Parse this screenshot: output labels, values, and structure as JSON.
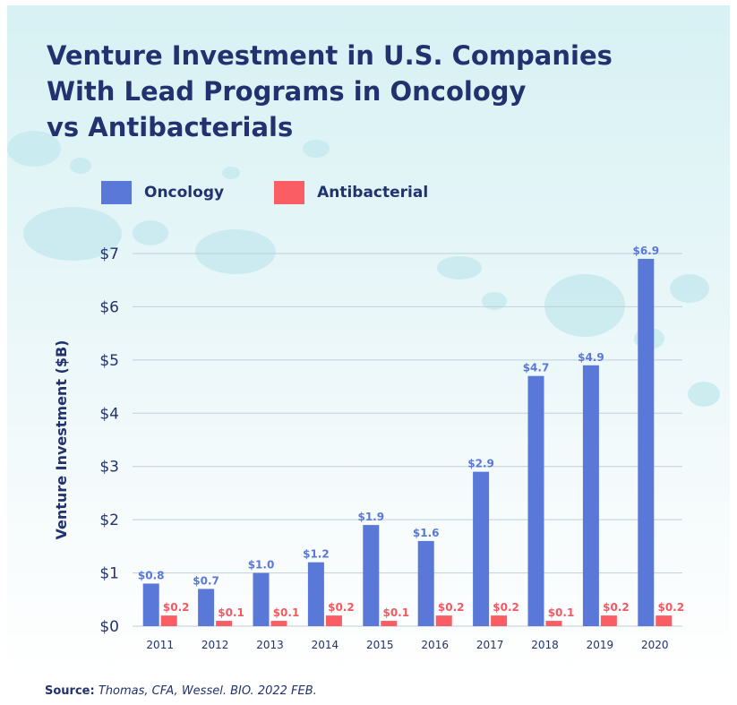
{
  "title": "Venture Investment in U.S. Companies\nWith Lead Programs in Oncology\nvs Antibacterials",
  "source_label": "Source:",
  "source_text": "Thomas, CFA, Wessel. BIO. 2022 FEB.",
  "colors": {
    "oncology": "#5a78d8",
    "antibacterial": "#fb5d64",
    "oncology_label": "#5a78d8",
    "antibacterial_label": "#f25a62",
    "axis_text": "#22326e",
    "grid": "#bfcfdc"
  },
  "chart_data": {
    "type": "bar",
    "title": "Venture Investment in U.S. Companies With Lead Programs in Oncology vs Antibacterials",
    "xlabel": "",
    "ylabel": "Venture Investment ($B)",
    "ylim": [
      0,
      7
    ],
    "yticks": [
      "$0",
      "$1",
      "$2",
      "$3",
      "$4",
      "$5",
      "$6",
      "$7"
    ],
    "grid": true,
    "legend_position": "top-left",
    "categories": [
      "2011",
      "2012",
      "2013",
      "2014",
      "2015",
      "2016",
      "2017",
      "2018",
      "2019",
      "2020"
    ],
    "series": [
      {
        "name": "Oncology",
        "values": [
          0.8,
          0.7,
          1.0,
          1.2,
          1.9,
          1.6,
          2.9,
          4.7,
          4.9,
          6.9
        ],
        "labels": [
          "$0.8",
          "$0.7",
          "$1.0",
          "$1.2",
          "$1.9",
          "$1.6",
          "$2.9",
          "$4.7",
          "$4.9",
          "$6.9"
        ]
      },
      {
        "name": "Antibacterial",
        "values": [
          0.2,
          0.1,
          0.1,
          0.2,
          0.1,
          0.2,
          0.2,
          0.1,
          0.2,
          0.2
        ],
        "labels": [
          "$0.2",
          "$0.1",
          "$0.1",
          "$0.2",
          "$0.1",
          "$0.2",
          "$0.2",
          "$0.1",
          "$0.2",
          "$0.2"
        ]
      }
    ]
  }
}
